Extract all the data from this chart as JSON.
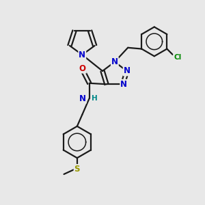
{
  "bg_color": "#e8e8e8",
  "bond_color": "#1a1a1a",
  "bond_width": 1.6,
  "atom_colors": {
    "N": "#0000cc",
    "O": "#cc0000",
    "Cl": "#008800",
    "S": "#999900",
    "H": "#008888",
    "C": "#1a1a1a"
  },
  "font_size_atom": 8.5,
  "font_size_small": 7.5,
  "font_size_cl": 7.5
}
